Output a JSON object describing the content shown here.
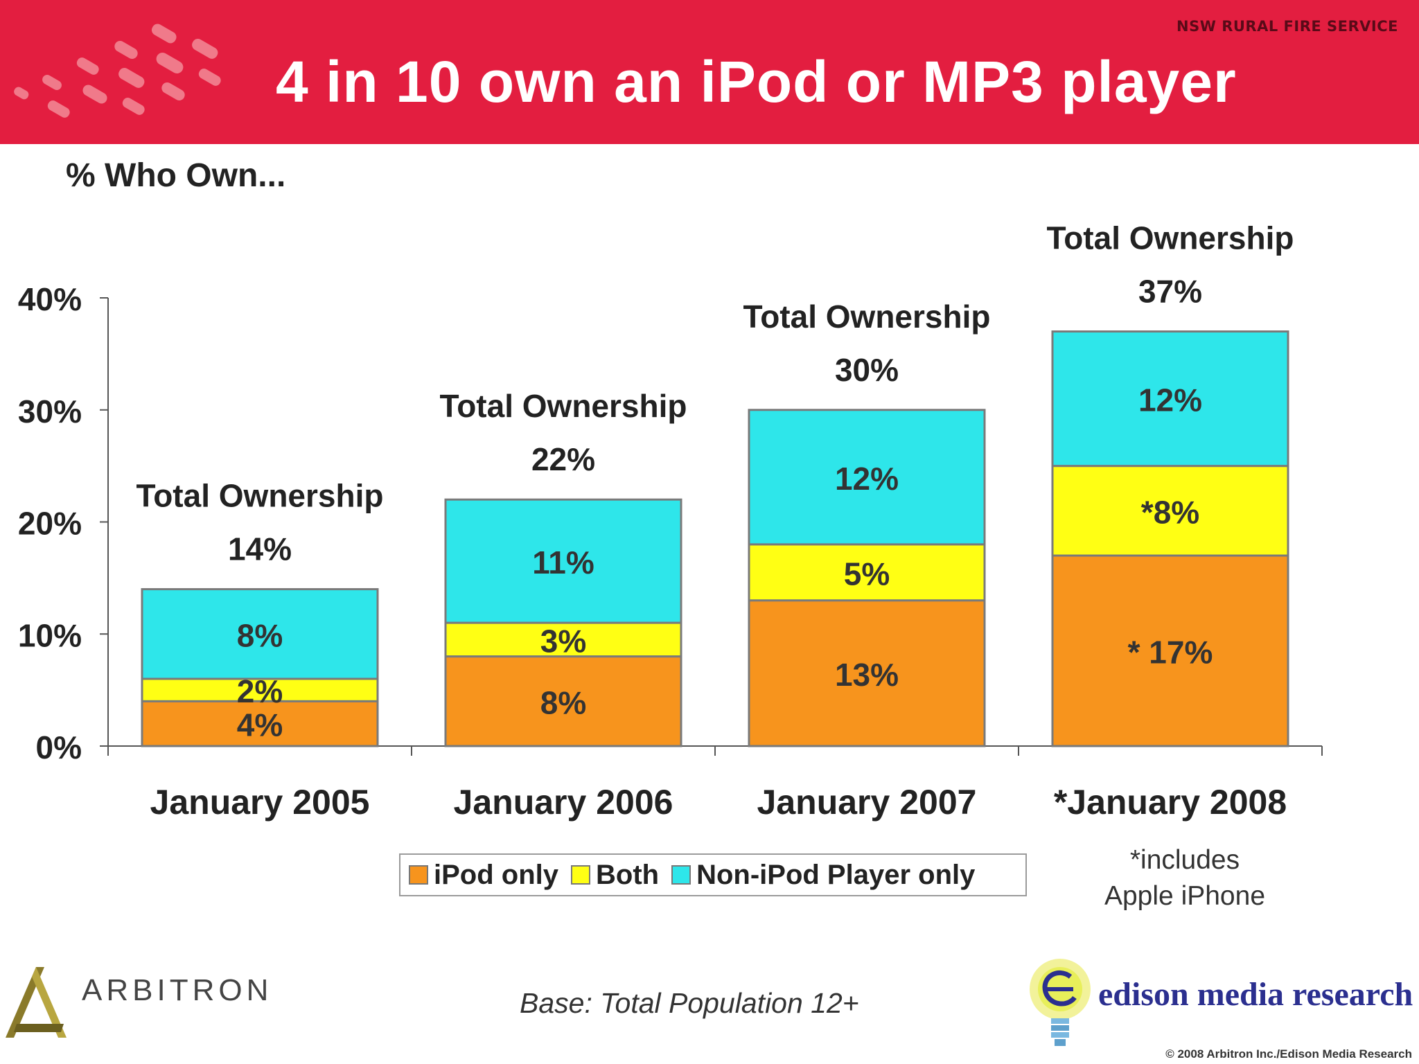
{
  "header": {
    "title": "4 in 10 own an iPod or MP3 player",
    "org_prefix": "NSW",
    "org_name": "RURAL FIRE SERVICE"
  },
  "chart_data": {
    "type": "bar",
    "stacked": true,
    "title": "4 in 10 own an iPod or MP3 player",
    "subtitle": "% Who Own...",
    "categories": [
      "January 2005",
      "January 2006",
      "January 2007",
      "*January 2008"
    ],
    "series": [
      {
        "name": "iPod only",
        "color": "#f7941d",
        "values": [
          4,
          8,
          13,
          17
        ],
        "labels": [
          "4%",
          "8%",
          "13%",
          "* 17%"
        ]
      },
      {
        "name": "Both",
        "color": "#ffff14",
        "values": [
          2,
          3,
          5,
          8
        ],
        "labels": [
          "2%",
          "3%",
          "5%",
          "*8%"
        ]
      },
      {
        "name": "Non-iPod Player only",
        "color": "#2ee6ea",
        "values": [
          8,
          11,
          12,
          12
        ],
        "labels": [
          "8%",
          "11%",
          "12%",
          "12%"
        ]
      }
    ],
    "totals": {
      "label": "Total Ownership",
      "values": [
        14,
        22,
        30,
        37
      ],
      "value_labels": [
        "14%",
        "22%",
        "30%",
        "37%"
      ]
    },
    "ylim": [
      0,
      40
    ],
    "yticks": [
      0,
      10,
      20,
      30,
      40
    ],
    "ytick_labels": [
      "0%",
      "10%",
      "20%",
      "30%",
      "40%"
    ],
    "grid": false,
    "legend_position": "bottom"
  },
  "footnote": {
    "line1": "*includes",
    "line2": "Apple iPhone"
  },
  "base_note": "Base:  Total Population 12+",
  "logos": {
    "left": "ARBITRON",
    "right": "edison media research"
  },
  "copyright": "© 2008 Arbitron Inc./Edison Media Research",
  "colors": {
    "header": "#e31e40",
    "ipod_only": "#f7941d",
    "both": "#ffff14",
    "non_ipod": "#2ee6ea"
  }
}
